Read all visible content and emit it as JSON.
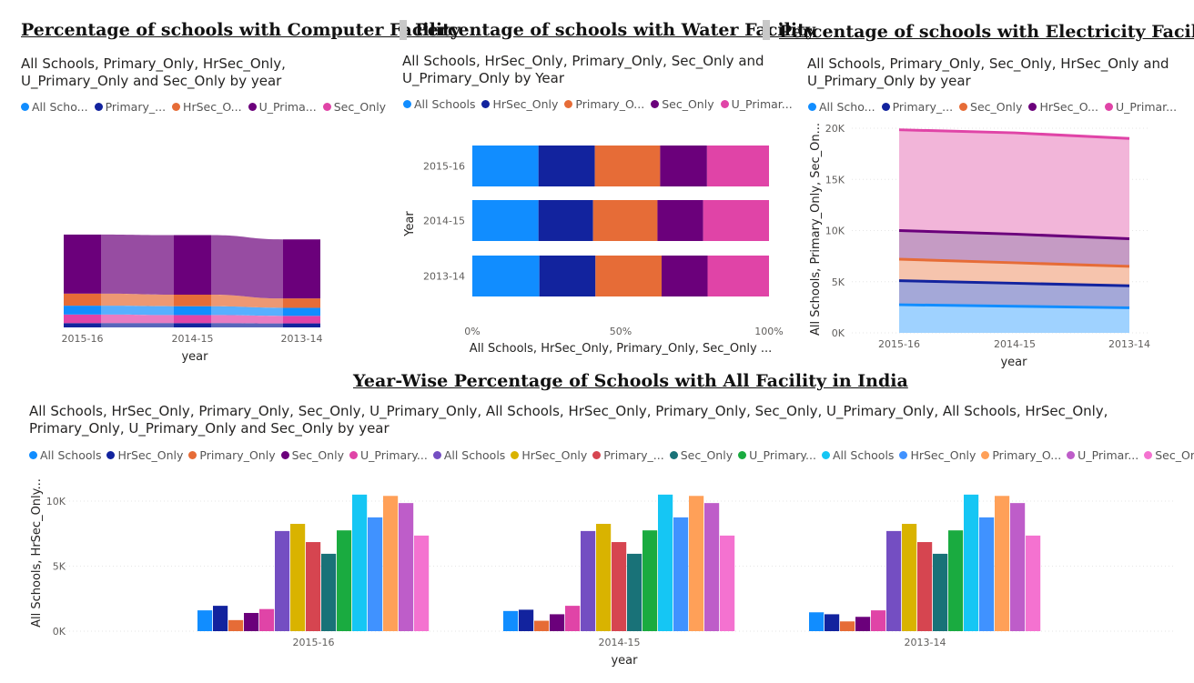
{
  "headers": {
    "computer": "Percentage of schools with Computer Facility",
    "water": "Percentage of schools with Water Facility",
    "electricity": "Percentage of schools with Electricity Facility",
    "all": "Year-Wise Percentage of Schools with  All Facility in India"
  },
  "colors": {
    "All Schools": "#118dff",
    "Primary_Only": "#12239e",
    "HrSec_Only": "#e66c37",
    "U_Primary_Only": "#6b007b",
    "Sec_Only": "#e044a7",
    "All Schools 2": "#744ec2",
    "HrSec_Only 2": "#d9b300",
    "Primary_Only 2": "#d64550",
    "Sec_Only 2": "#197278",
    "U_Primary_Only 2": "#1aab40",
    "All Schools 3": "#15c6f4",
    "HrSec_Only 3": "#4092ff",
    "Primary_Only 3": "#ffa058",
    "U_Primary_Only 3": "#be5dc9",
    "Sec_Only 3": "#f472d0"
  },
  "chart_data": [
    {
      "type": "ribbon",
      "subtitle_line1": "All Schools, Primary_Only, HrSec_Only,",
      "subtitle_line2": "U_Primary_Only and Sec_Only by year",
      "legend": [
        "All Scho...",
        "Primary_...",
        "HrSec_O...",
        "U_Prima...",
        "Sec_Only"
      ],
      "legend_colors": [
        "#118dff",
        "#12239e",
        "#e66c37",
        "#6b007b",
        "#e044a7"
      ],
      "xlabel": "year",
      "categories": [
        "2015-16",
        "2014-15",
        "2013-14"
      ],
      "series": [
        {
          "name": "Primary_Only",
          "color": "#12239e",
          "values": [
            1.6,
            1.6,
            1.5
          ]
        },
        {
          "name": "Sec_Only",
          "color": "#e044a7",
          "values": [
            3.2,
            3.0,
            2.8
          ]
        },
        {
          "name": "All Schools",
          "color": "#118dff",
          "values": [
            3.3,
            3.3,
            3.0
          ]
        },
        {
          "name": "HrSec_Only",
          "color": "#e66c37",
          "values": [
            4.5,
            4.3,
            3.5
          ]
        },
        {
          "name": "U_Primary_Only",
          "color": "#6b007b",
          "values": [
            22.0,
            22.2,
            22.0
          ]
        }
      ]
    },
    {
      "type": "bar",
      "stacked": "100%",
      "subtitle_line1": "All Schools, HrSec_Only, Primary_Only, Sec_Only and",
      "subtitle_line2": "U_Primary_Only by Year",
      "legend": [
        "All Schools",
        "HrSec_Only",
        "Primary_O...",
        "Sec_Only",
        "U_Primar..."
      ],
      "legend_colors": [
        "#118dff",
        "#12239e",
        "#e66c37",
        "#6b007b",
        "#e044a7"
      ],
      "ylabel": "Year",
      "xlabel": "All Schools, HrSec_Only, Primary_Only, Sec_Only ...",
      "x_ticks": [
        "0%",
        "50%",
        "100%"
      ],
      "categories": [
        "2015-16",
        "2014-15",
        "2013-14"
      ],
      "series": [
        {
          "name": "All Schools",
          "color": "#118dff",
          "values": [
            22.3,
            22.3,
            22.6
          ]
        },
        {
          "name": "HrSec_Only",
          "color": "#12239e",
          "values": [
            19.0,
            18.4,
            18.9
          ]
        },
        {
          "name": "Primary_Only",
          "color": "#e66c37",
          "values": [
            22.0,
            21.7,
            22.3
          ]
        },
        {
          "name": "Sec_Only",
          "color": "#6b007b",
          "values": [
            15.8,
            15.4,
            15.5
          ]
        },
        {
          "name": "U_Primary_Only",
          "color": "#e044a7",
          "values": [
            20.9,
            22.2,
            20.7
          ]
        }
      ]
    },
    {
      "type": "area",
      "stacked": true,
      "subtitle_line1": "All Schools, Primary_Only, Sec_Only, HrSec_Only and",
      "subtitle_line2": "U_Primary_Only by year",
      "legend": [
        "All Scho...",
        "Primary_...",
        "Sec_Only",
        "HrSec_O...",
        "U_Primar..."
      ],
      "legend_colors": [
        "#118dff",
        "#12239e",
        "#e66c37",
        "#6b007b",
        "#e044a7"
      ],
      "ylabel": "All Schools, Primary_Only, Sec_On...",
      "xlabel": "year",
      "y_ticks": [
        "0K",
        "5K",
        "10K",
        "15K",
        "20K"
      ],
      "ylim": [
        0,
        20000
      ],
      "categories": [
        "2015-16",
        "2014-15",
        "2013-14"
      ],
      "series": [
        {
          "name": "All Schools",
          "color": "#118dff",
          "fill": "#9fd2ff",
          "values": [
            2750,
            2600,
            2450
          ]
        },
        {
          "name": "Primary_Only",
          "color": "#12239e",
          "fill": "#a4a8d8",
          "values": [
            2350,
            2250,
            2150
          ]
        },
        {
          "name": "Sec_Only",
          "color": "#e66c37",
          "fill": "#f6c4ad",
          "values": [
            2100,
            2000,
            1900
          ]
        },
        {
          "name": "HrSec_Only",
          "color": "#6b007b",
          "fill": "#c59bc4",
          "values": [
            2800,
            2800,
            2700
          ]
        },
        {
          "name": "U_Primary_Only",
          "color": "#e044a7",
          "fill": "#f2b5d9",
          "values": [
            9850,
            9900,
            9800
          ]
        }
      ]
    },
    {
      "type": "bar",
      "grouped": true,
      "subtitle_line1": "All Schools, HrSec_Only, Primary_Only, Sec_Only, U_Primary_Only, All Schools, HrSec_Only, Primary_Only, Sec_Only, U_Primary_Only, All Schools, HrSec_Only,",
      "subtitle_line2": "Primary_Only, U_Primary_Only and Sec_Only by year",
      "legend": [
        "All Schools",
        "HrSec_Only",
        "Primary_Only",
        "Sec_Only",
        "U_Primary...",
        "All Schools",
        "HrSec_Only",
        "Primary_...",
        "Sec_Only",
        "U_Primary...",
        "All Schools",
        "HrSec_Only",
        "Primary_O...",
        "U_Primar...",
        "Sec_Only"
      ],
      "legend_colors": [
        "#118dff",
        "#12239e",
        "#e66c37",
        "#6b007b",
        "#e044a7",
        "#744ec2",
        "#d9b300",
        "#d64550",
        "#197278",
        "#1aab40",
        "#15c6f4",
        "#4092ff",
        "#ffa058",
        "#be5dc9",
        "#f472d0"
      ],
      "ylabel": "All Schools, HrSec_Only...",
      "xlabel": "year",
      "y_ticks": [
        "0K",
        "5K",
        "10K"
      ],
      "ylim": [
        0,
        10500
      ],
      "categories": [
        "2015-16",
        "2014-15",
        "2013-14"
      ],
      "series": [
        {
          "name": "All Schools",
          "values": [
            1600,
            1550,
            1450
          ]
        },
        {
          "name": "HrSec_Only",
          "values": [
            1950,
            1650,
            1300
          ]
        },
        {
          "name": "Primary_Only",
          "values": [
            850,
            800,
            750
          ]
        },
        {
          "name": "Sec_Only",
          "values": [
            1400,
            1300,
            1100
          ]
        },
        {
          "name": "U_Primary_Only",
          "values": [
            1700,
            1950,
            1600
          ]
        },
        {
          "name": "All Schools",
          "values": [
            7700,
            7700,
            7700
          ]
        },
        {
          "name": "HrSec_Only",
          "values": [
            8250,
            8250,
            8250
          ]
        },
        {
          "name": "Primary_Only",
          "values": [
            6850,
            6850,
            6850
          ]
        },
        {
          "name": "Sec_Only",
          "values": [
            5950,
            5950,
            5950
          ]
        },
        {
          "name": "U_Primary_Only",
          "values": [
            7750,
            7750,
            7750
          ]
        },
        {
          "name": "All Schools",
          "values": [
            10500,
            10500,
            10500
          ]
        },
        {
          "name": "HrSec_Only",
          "values": [
            8750,
            8750,
            8750
          ]
        },
        {
          "name": "Primary_Only",
          "values": [
            10400,
            10400,
            10400
          ]
        },
        {
          "name": "U_Primary_Only",
          "values": [
            9850,
            9850,
            9850
          ]
        },
        {
          "name": "Sec_Only",
          "values": [
            7350,
            7350,
            7350
          ]
        }
      ]
    }
  ]
}
